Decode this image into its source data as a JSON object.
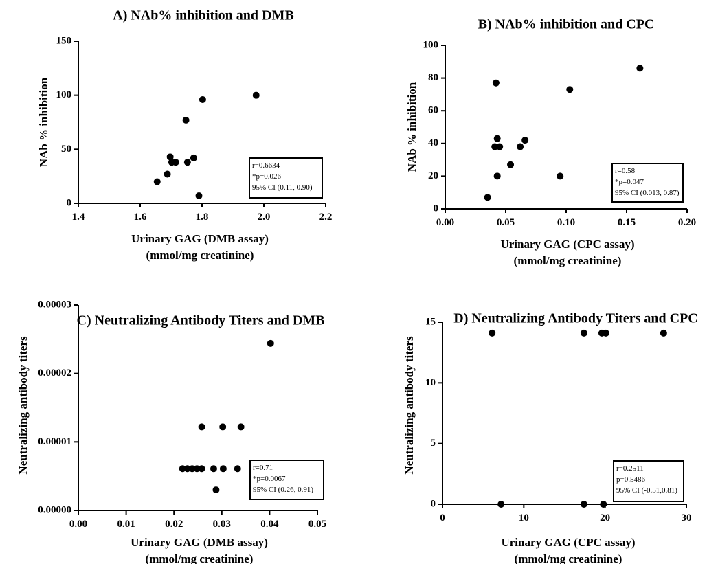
{
  "chart_data": [
    {
      "type": "scatter",
      "title": "A) NAb% inhibition and DMB",
      "xlabel_lines": [
        "Urinary GAG (DMB assay)",
        "(mmol/mg creatinine)"
      ],
      "ylabel": "NAb % inhibition",
      "xlim": [
        1.4,
        2.2
      ],
      "ylim": [
        0,
        150
      ],
      "xticks": [
        1.4,
        1.6,
        1.8,
        2.0,
        2.2
      ],
      "xtick_labels": [
        "1.4",
        "1.6",
        "1.8",
        "2.0",
        "2.2"
      ],
      "yticks": [
        0,
        50,
        100,
        150
      ],
      "ytick_labels": [
        "0",
        "50",
        "100",
        "150"
      ],
      "points": [
        [
          1.655,
          20
        ],
        [
          1.688,
          27
        ],
        [
          1.697,
          43
        ],
        [
          1.702,
          38
        ],
        [
          1.715,
          38
        ],
        [
          1.748,
          77
        ],
        [
          1.753,
          38
        ],
        [
          1.773,
          42
        ],
        [
          1.79,
          7
        ],
        [
          1.802,
          96
        ],
        [
          1.975,
          100
        ]
      ],
      "stats": [
        "r=0.6634",
        "*p=0.026",
        "95% CI (0.11, 0.90)"
      ],
      "stats_box_position": "bottom-right",
      "grid": false
    },
    {
      "type": "scatter",
      "title": "B) NAb% inhibition and CPC",
      "xlabel_lines": [
        "Urinary GAG (CPC assay)",
        "(mmol/mg creatinine)"
      ],
      "ylabel": "NAb % inhibition",
      "xlim": [
        0,
        0.2
      ],
      "ylim": [
        0,
        100
      ],
      "xticks": [
        0,
        0.05,
        0.1,
        0.15,
        0.2
      ],
      "xtick_labels": [
        "0.00",
        "0.05",
        "0.10",
        "0.15",
        "0.20"
      ],
      "yticks": [
        0,
        20,
        40,
        60,
        80,
        100
      ],
      "ytick_labels": [
        "0",
        "20",
        "40",
        "60",
        "80",
        "100"
      ],
      "points": [
        [
          0.035,
          7
        ],
        [
          0.041,
          38
        ],
        [
          0.042,
          77
        ],
        [
          0.043,
          20
        ],
        [
          0.043,
          43
        ],
        [
          0.045,
          38
        ],
        [
          0.054,
          27
        ],
        [
          0.062,
          38
        ],
        [
          0.066,
          42
        ],
        [
          0.095,
          20
        ],
        [
          0.103,
          73
        ],
        [
          0.161,
          86
        ]
      ],
      "stats": [
        "r=0.58",
        "*p=0.047",
        "95% CI (0.013, 0.87)"
      ],
      "stats_box_position": "bottom-right",
      "grid": false
    },
    {
      "type": "scatter",
      "title": "C) Neutralizing Antibody Titers and DMB",
      "xlabel_lines": [
        "Urinary GAG (DMB assay)",
        "(mmol/mg creatinine)"
      ],
      "ylabel": "Neutralizing antibody titers",
      "xlim": [
        0,
        0.05
      ],
      "ylim": [
        0,
        3e-05
      ],
      "xticks": [
        0,
        0.01,
        0.02,
        0.03,
        0.04,
        0.05
      ],
      "xtick_labels": [
        "0.00",
        "0.01",
        "0.02",
        "0.03",
        "0.04",
        "0.05"
      ],
      "yticks": [
        0,
        1e-05,
        2e-05,
        3e-05
      ],
      "ytick_labels": [
        "0.00000",
        "0.00001",
        "0.00002",
        "0.00003"
      ],
      "points": [
        [
          0.0218,
          6.1e-06
        ],
        [
          0.0228,
          6.1e-06
        ],
        [
          0.0238,
          6.1e-06
        ],
        [
          0.0248,
          6.1e-06
        ],
        [
          0.0258,
          6.1e-06
        ],
        [
          0.0258,
          1.22e-05
        ],
        [
          0.0283,
          6.1e-06
        ],
        [
          0.0288,
          3e-06
        ],
        [
          0.0302,
          1.22e-05
        ],
        [
          0.0303,
          6.1e-06
        ],
        [
          0.0333,
          6.1e-06
        ],
        [
          0.034,
          1.22e-05
        ],
        [
          0.0402,
          2.44e-05
        ]
      ],
      "stats": [
        "r=0.71",
        "*p=0.0067",
        "95% CI (0.26, 0.91)"
      ],
      "stats_box_position": "bottom-right",
      "grid": false
    },
    {
      "type": "scatter",
      "title": "D) Neutralizing Antibody Titers and CPC",
      "xlabel_lines": [
        "Urinary GAG (CPC assay)",
        "(mmol/mg creatinine)"
      ],
      "ylabel": "Neutralizing antibody titers",
      "xlim": [
        0,
        30
      ],
      "ylim": [
        0,
        15
      ],
      "xticks": [
        0,
        10,
        20,
        30
      ],
      "xtick_labels": [
        "0",
        "10",
        "20",
        "30"
      ],
      "yticks": [
        0,
        5,
        10,
        15
      ],
      "ytick_labels": [
        "0",
        "5",
        "10",
        "15"
      ],
      "points": [
        [
          6.1,
          14.1
        ],
        [
          17.4,
          14.1
        ],
        [
          19.6,
          14.1
        ],
        [
          20.1,
          14.1
        ],
        [
          27.2,
          14.1
        ],
        [
          7.2,
          0
        ],
        [
          17.4,
          0
        ],
        [
          19.8,
          0
        ]
      ],
      "stats": [
        "r=0.2511",
        "p=0.5486",
        "95% CI (-0.51,0.81)"
      ],
      "stats_box_position": "bottom-right",
      "grid": false
    }
  ]
}
